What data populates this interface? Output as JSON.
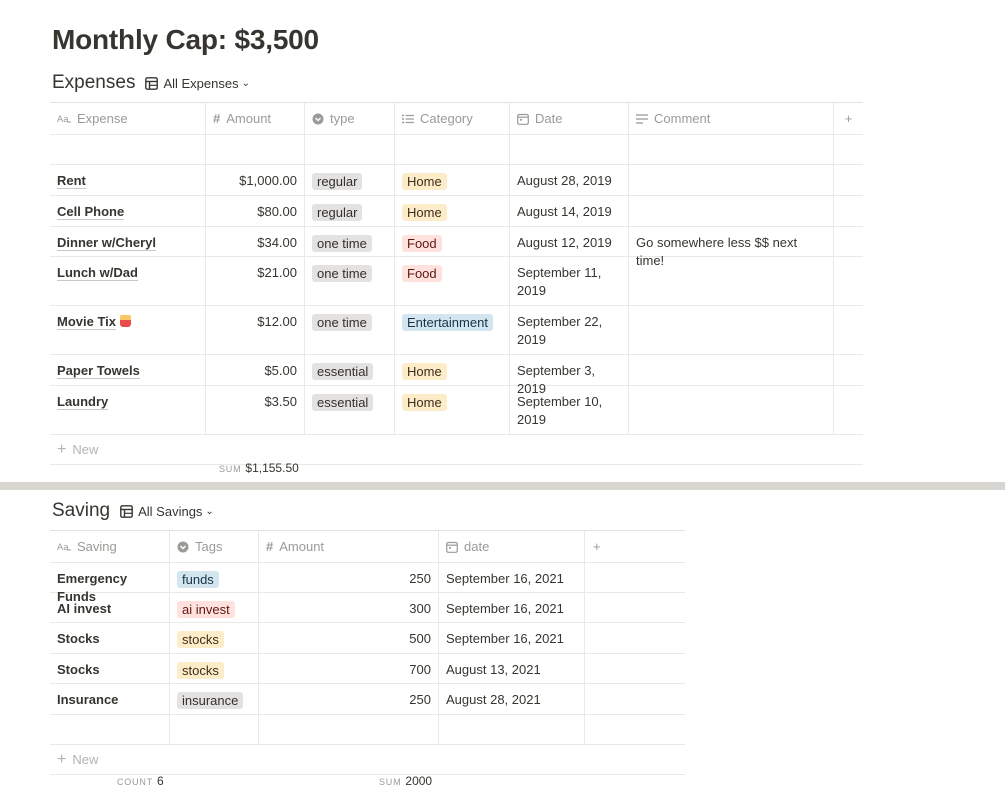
{
  "page_title": "Monthly Cap: $3,500",
  "expenses": {
    "title": "Expenses",
    "view_label": "All Expenses",
    "columns": [
      "Expense",
      "Amount",
      "type",
      "Category",
      "Date",
      "Comment"
    ],
    "rows": [
      {
        "expense": "",
        "amount": "",
        "type": "",
        "category": "",
        "date": "",
        "comment": ""
      },
      {
        "expense": "Rent",
        "amount": "$1,000.00",
        "type": "regular",
        "category": "Home",
        "date": "August 28, 2019",
        "comment": ""
      },
      {
        "expense": "Cell Phone",
        "amount": "$80.00",
        "type": "regular",
        "category": "Home",
        "date": "August 14, 2019",
        "comment": ""
      },
      {
        "expense": "Dinner w/Cheryl",
        "amount": "$34.00",
        "type": "one time",
        "category": "Food",
        "date": "August 12, 2019",
        "comment": "Go somewhere less $$ next time!"
      },
      {
        "expense": "Lunch w/Dad",
        "amount": "$21.00",
        "type": "one time",
        "category": "Food",
        "date": "September 11, 2019",
        "comment": ""
      },
      {
        "expense": "Movie Tix",
        "amount": "$12.00",
        "type": "one time",
        "category": "Entertainment",
        "date": "September 22, 2019",
        "comment": ""
      },
      {
        "expense": "Paper Towels",
        "amount": "$5.00",
        "type": "essential",
        "category": "Home",
        "date": "September 3, 2019",
        "comment": ""
      },
      {
        "expense": "Laundry",
        "amount": "$3.50",
        "type": "essential",
        "category": "Home",
        "date": "September 10, 2019",
        "comment": ""
      }
    ],
    "new_label": "New",
    "sum_label": "SUM",
    "sum_value": "$1,155.50"
  },
  "savings": {
    "title": "Saving",
    "view_label": "All Savings",
    "columns": [
      "Saving",
      "Tags",
      "Amount",
      "date"
    ],
    "rows": [
      {
        "saving": "Emergency Funds",
        "tag": "funds",
        "amount": "250",
        "date": "September 16, 2021"
      },
      {
        "saving": "AI invest",
        "tag": "ai invest",
        "amount": "300",
        "date": "September 16, 2021"
      },
      {
        "saving": "Stocks",
        "tag": "stocks",
        "amount": "500",
        "date": "September 16, 2021"
      },
      {
        "saving": "Stocks",
        "tag": "stocks",
        "amount": "700",
        "date": "August 13, 2021"
      },
      {
        "saving": "Insurance",
        "tag": "insurance",
        "amount": "250",
        "date": "August 28, 2021"
      },
      {
        "saving": "",
        "tag": "",
        "amount": "",
        "date": ""
      }
    ],
    "new_label": "New",
    "count_label": "COUNT",
    "count_value": "6",
    "sum_label": "SUM",
    "sum_value": "2000"
  },
  "colors": {
    "gray": "#e3e2e0",
    "yellow": "#fdecc8",
    "red": "#ffe2dd",
    "blue": "#d3e5ef"
  }
}
